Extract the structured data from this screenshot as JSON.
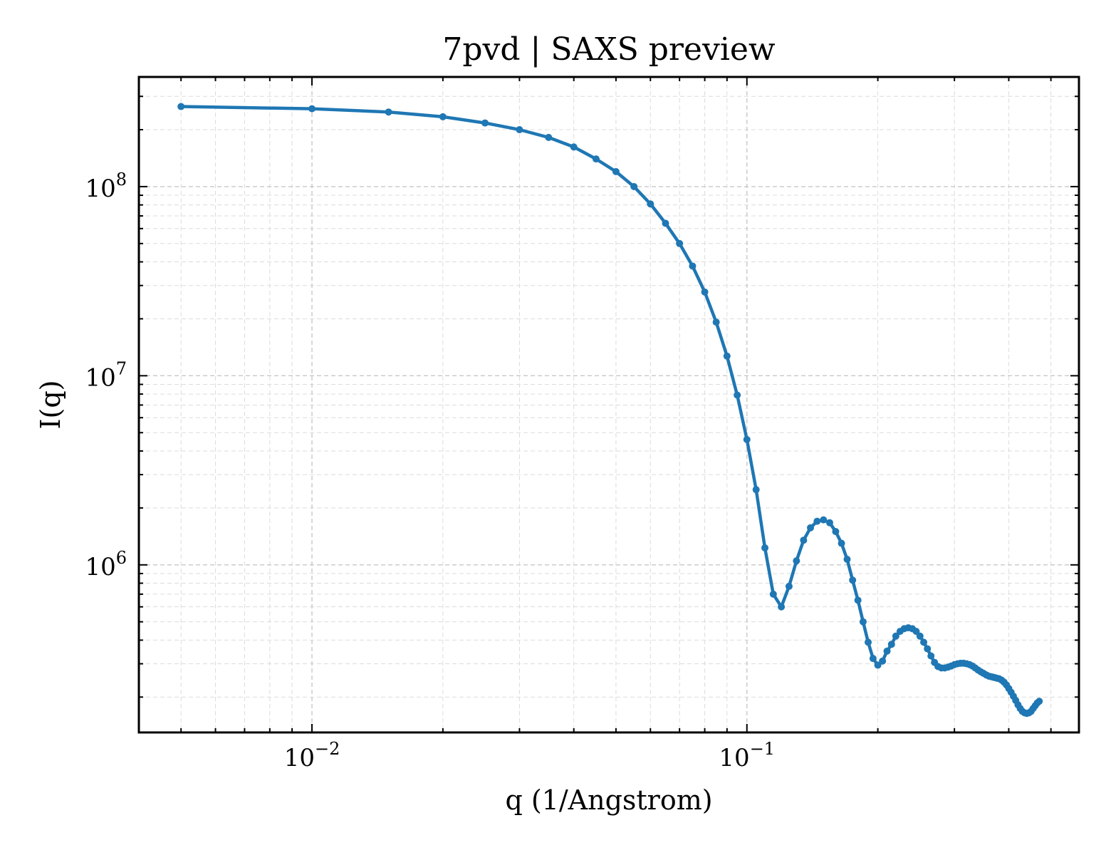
{
  "chart_data": {
    "type": "line",
    "title": "7pvd | SAXS preview",
    "xlabel": "q (1/Angstrom)",
    "ylabel": "I(q)",
    "xscale": "log",
    "yscale": "log",
    "xlim": [
      0.004,
      0.58
    ],
    "ylim": [
      130000,
      380000000
    ],
    "grid": true,
    "legend": "none",
    "x_ticks": [
      {
        "value": 0.01,
        "base": "10",
        "exp": "−2"
      },
      {
        "value": 0.1,
        "base": "10",
        "exp": "−1"
      }
    ],
    "y_ticks": [
      {
        "value": 1000000,
        "base": "10",
        "exp": "6"
      },
      {
        "value": 10000000,
        "base": "10",
        "exp": "7"
      },
      {
        "value": 100000000,
        "base": "10",
        "exp": "8"
      }
    ],
    "color": "#1f77b4",
    "series": [
      {
        "marker": "point",
        "points": [
          [
            0.005,
            265000000
          ],
          [
            0.01,
            258000000
          ],
          [
            0.015,
            248000000
          ],
          [
            0.02,
            234000000
          ],
          [
            0.025,
            217000000
          ],
          [
            0.03,
            200000000
          ],
          [
            0.035,
            182000000
          ],
          [
            0.04,
            162000000
          ],
          [
            0.045,
            140000000
          ],
          [
            0.05,
            120000000
          ],
          [
            0.055,
            100000000
          ],
          [
            0.06,
            81000000
          ],
          [
            0.065,
            64000000
          ],
          [
            0.07,
            50000000
          ],
          [
            0.075,
            38000000
          ],
          [
            0.08,
            27700000
          ],
          [
            0.085,
            19200000
          ],
          [
            0.09,
            12700000
          ],
          [
            0.095,
            7900000
          ],
          [
            0.1,
            4600000
          ],
          [
            0.105,
            2500000
          ],
          [
            0.11,
            1230000
          ],
          [
            0.115,
            700000
          ],
          [
            0.12,
            600000
          ],
          [
            0.125,
            770000
          ],
          [
            0.13,
            1050000
          ],
          [
            0.135,
            1350000
          ],
          [
            0.14,
            1570000
          ],
          [
            0.145,
            1700000
          ],
          [
            0.15,
            1730000
          ],
          [
            0.155,
            1670000
          ],
          [
            0.16,
            1500000
          ],
          [
            0.165,
            1300000
          ],
          [
            0.17,
            1070000
          ],
          [
            0.175,
            830000
          ],
          [
            0.18,
            650000
          ],
          [
            0.185,
            500000
          ],
          [
            0.19,
            390000
          ],
          [
            0.195,
            320000
          ],
          [
            0.2,
            295000
          ],
          [
            0.205,
            310000
          ],
          [
            0.21,
            350000
          ],
          [
            0.215,
            380000
          ],
          [
            0.22,
            420000
          ],
          [
            0.225,
            445000
          ],
          [
            0.23,
            460000
          ],
          [
            0.235,
            465000
          ],
          [
            0.24,
            460000
          ],
          [
            0.245,
            445000
          ],
          [
            0.25,
            420000
          ],
          [
            0.255,
            390000
          ],
          [
            0.26,
            360000
          ],
          [
            0.265,
            330000
          ],
          [
            0.27,
            305000
          ],
          [
            0.275,
            290000
          ],
          [
            0.28,
            285000
          ],
          [
            0.285,
            285000
          ],
          [
            0.29,
            288000
          ],
          [
            0.295,
            292000
          ],
          [
            0.3,
            297000
          ],
          [
            0.305,
            300000
          ],
          [
            0.31,
            302000
          ],
          [
            0.315,
            302000
          ],
          [
            0.32,
            300000
          ],
          [
            0.325,
            297000
          ],
          [
            0.33,
            292000
          ],
          [
            0.335,
            285000
          ],
          [
            0.34,
            278000
          ],
          [
            0.345,
            272000
          ],
          [
            0.35,
            267000
          ],
          [
            0.355,
            262000
          ],
          [
            0.36,
            258000
          ],
          [
            0.365,
            256000
          ],
          [
            0.37,
            254000
          ],
          [
            0.375,
            252000
          ],
          [
            0.38,
            250000
          ],
          [
            0.385,
            246000
          ],
          [
            0.39,
            240000
          ],
          [
            0.395,
            232000
          ],
          [
            0.4,
            222000
          ],
          [
            0.405,
            212000
          ],
          [
            0.41,
            202000
          ],
          [
            0.415,
            192000
          ],
          [
            0.42,
            182000
          ],
          [
            0.425,
            174000
          ],
          [
            0.43,
            168000
          ],
          [
            0.435,
            165000
          ],
          [
            0.44,
            164000
          ],
          [
            0.445,
            165000
          ],
          [
            0.45,
            168000
          ],
          [
            0.455,
            174000
          ],
          [
            0.46,
            180000
          ],
          [
            0.465,
            186000
          ],
          [
            0.47,
            190000
          ]
        ]
      }
    ]
  }
}
